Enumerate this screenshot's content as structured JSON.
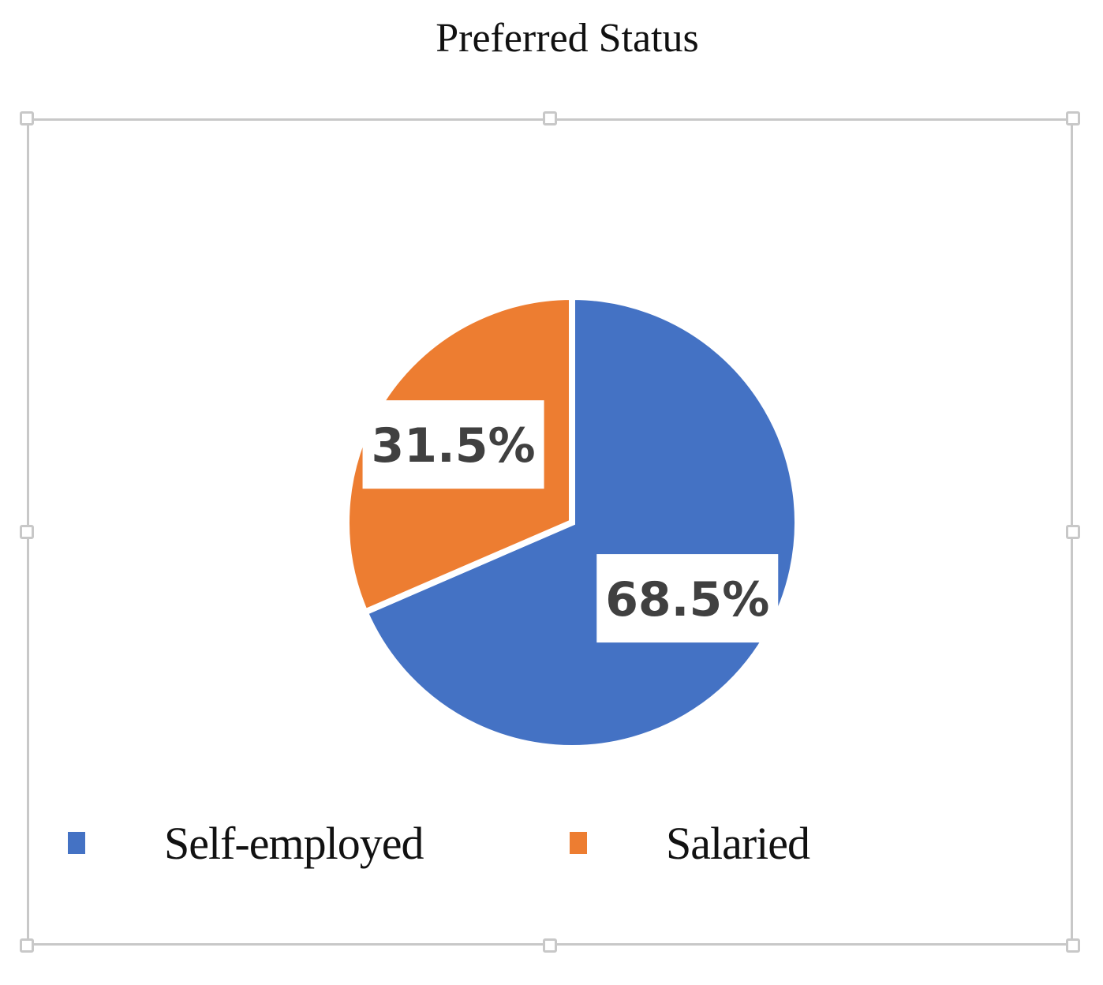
{
  "chart_data": {
    "type": "pie",
    "title": "Preferred Status",
    "categories": [
      "Self-employed",
      "Salaried"
    ],
    "values": [
      68.5,
      31.5
    ],
    "data_labels": [
      "68.5%",
      "31.5%"
    ],
    "colors": [
      "#4472C4",
      "#ED7D31"
    ],
    "start_angle_deg": 0,
    "direction": "clockwise",
    "legend": "bottom",
    "legend_items": [
      {
        "label": "Self-employed",
        "color": "#4472C4"
      },
      {
        "label": "Salaried",
        "color": "#ED7D31"
      }
    ]
  }
}
